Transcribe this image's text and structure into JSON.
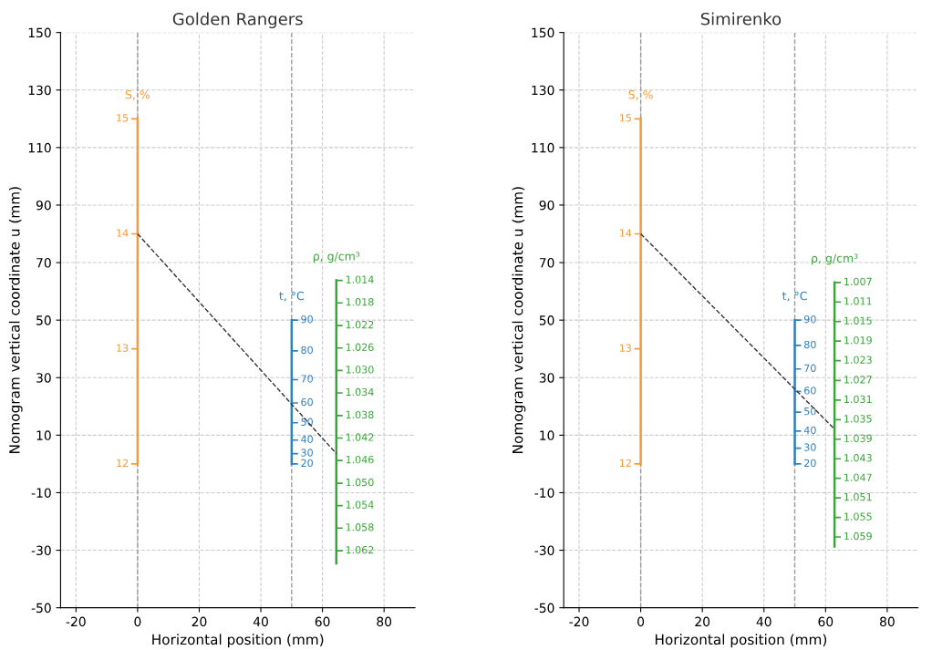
{
  "chart_data": [
    {
      "type": "line",
      "title": "Golden Rangers",
      "xlabel": "Horizontal position (mm)",
      "ylabel": "Nomogram vertical coordinate u (mm)",
      "xlim": [
        -25,
        90
      ],
      "xticks": [
        -20,
        0,
        20,
        40,
        60,
        80
      ],
      "ylim": [
        -50,
        150
      ],
      "yticks": [
        -50,
        -30,
        -10,
        10,
        30,
        50,
        70,
        90,
        110,
        130,
        150
      ],
      "grid": true,
      "marker": "none",
      "ref_lines": [
        {
          "axis": "x",
          "value": 0,
          "color": "#999999",
          "line_style": "dashed"
        },
        {
          "axis": "x",
          "value": 50,
          "color": "#999999",
          "line_style": "dashed"
        }
      ],
      "series": [
        {
          "name": "S, %",
          "color": "#f59a3a",
          "x": [
            0,
            0
          ],
          "values": [
            0,
            120
          ]
        },
        {
          "name": "t, °C",
          "color": "#2f7fc1",
          "x": [
            50,
            50
          ],
          "values": [
            0,
            50
          ]
        },
        {
          "name": "ρ, g/cm³",
          "color": "#3aa63a",
          "x": [
            64.5,
            64.5
          ],
          "values": [
            -34.6,
            63.8
          ]
        },
        {
          "color": "#333333",
          "x": [
            0,
            64.5
          ],
          "values": [
            80,
            3.6
          ],
          "line_style": "dashed"
        }
      ],
      "annotations": [
        {
          "text": "12",
          "x": 0,
          "y": 0
        },
        {
          "text": "13",
          "x": 0,
          "y": 40
        },
        {
          "text": "14",
          "x": 0,
          "y": 80
        },
        {
          "text": "15",
          "x": 0,
          "y": 120
        },
        {
          "text": "90",
          "x": 50,
          "y": 50
        },
        {
          "text": "80",
          "x": 50,
          "y": 39.3
        },
        {
          "text": "70",
          "x": 50,
          "y": 29.3
        },
        {
          "text": "60",
          "x": 50,
          "y": 21.2
        },
        {
          "text": "50",
          "x": 50,
          "y": 14.3
        },
        {
          "text": "40",
          "x": 50,
          "y": 8.3
        },
        {
          "text": "30",
          "x": 50,
          "y": 3.6
        },
        {
          "text": "20",
          "x": 50,
          "y": 0
        },
        {
          "text": "1.014",
          "x": 64.5,
          "y": 63.8
        },
        {
          "text": "1.018",
          "x": 64.5,
          "y": 56.0
        },
        {
          "text": "1.022",
          "x": 64.5,
          "y": 48.1
        },
        {
          "text": "1.026",
          "x": 64.5,
          "y": 40.3
        },
        {
          "text": "1.030",
          "x": 64.5,
          "y": 32.5
        },
        {
          "text": "1.034",
          "x": 64.5,
          "y": 24.7
        },
        {
          "text": "1.038",
          "x": 64.5,
          "y": 16.8
        },
        {
          "text": "1.042",
          "x": 64.5,
          "y": 9.0
        },
        {
          "text": "1.046",
          "x": 64.5,
          "y": 1.2
        },
        {
          "text": "1.050",
          "x": 64.5,
          "y": -6.7
        },
        {
          "text": "1.054",
          "x": 64.5,
          "y": -14.5
        },
        {
          "text": "1.058",
          "x": 64.5,
          "y": -22.3
        },
        {
          "text": "1.062",
          "x": 64.5,
          "y": -30.2
        }
      ]
    },
    {
      "type": "line",
      "title": "Simirenko",
      "xlabel": "Horizontal position (mm)",
      "ylabel": "Nomogram vertical coordinate u (mm)",
      "xlim": [
        -25,
        90
      ],
      "xticks": [
        -20,
        0,
        20,
        40,
        60,
        80
      ],
      "ylim": [
        -50,
        150
      ],
      "yticks": [
        -50,
        -30,
        -10,
        10,
        30,
        50,
        70,
        90,
        110,
        130,
        150
      ],
      "grid": true,
      "marker": "none",
      "ref_lines": [
        {
          "axis": "x",
          "value": 0,
          "color": "#999999",
          "line_style": "dashed"
        },
        {
          "axis": "x",
          "value": 50,
          "color": "#999999",
          "line_style": "dashed"
        }
      ],
      "series": [
        {
          "name": "S, %",
          "color": "#f59a3a",
          "x": [
            0,
            0
          ],
          "values": [
            0,
            120
          ]
        },
        {
          "name": "t, °C",
          "color": "#2f7fc1",
          "x": [
            50,
            50
          ],
          "values": [
            0,
            50
          ]
        },
        {
          "name": "ρ, g/cm³",
          "color": "#3aa63a",
          "x": [
            62.9,
            62.9
          ],
          "values": [
            -28.7,
            63.1
          ]
        },
        {
          "color": "#333333",
          "x": [
            0,
            62.9
          ],
          "values": [
            80,
            12.1
          ],
          "line_style": "dashed"
        }
      ],
      "annotations": [
        {
          "text": "12",
          "x": 0,
          "y": 0
        },
        {
          "text": "13",
          "x": 0,
          "y": 40
        },
        {
          "text": "14",
          "x": 0,
          "y": 80
        },
        {
          "text": "15",
          "x": 0,
          "y": 120
        },
        {
          "text": "90",
          "x": 50,
          "y": 50
        },
        {
          "text": "80",
          "x": 50,
          "y": 41.2
        },
        {
          "text": "70",
          "x": 50,
          "y": 33.0
        },
        {
          "text": "60",
          "x": 50,
          "y": 25.2
        },
        {
          "text": "50",
          "x": 50,
          "y": 18.0
        },
        {
          "text": "40",
          "x": 50,
          "y": 11.4
        },
        {
          "text": "30",
          "x": 50,
          "y": 5.5
        },
        {
          "text": "20",
          "x": 50,
          "y": 0
        },
        {
          "text": "1.007",
          "x": 62.9,
          "y": 63.1
        },
        {
          "text": "1.011",
          "x": 62.9,
          "y": 56.3
        },
        {
          "text": "1.015",
          "x": 62.9,
          "y": 49.5
        },
        {
          "text": "1.019",
          "x": 62.9,
          "y": 42.7
        },
        {
          "text": "1.023",
          "x": 62.9,
          "y": 35.9
        },
        {
          "text": "1.027",
          "x": 62.9,
          "y": 29.0
        },
        {
          "text": "1.031",
          "x": 62.9,
          "y": 22.2
        },
        {
          "text": "1.035",
          "x": 62.9,
          "y": 15.4
        },
        {
          "text": "1.039",
          "x": 62.9,
          "y": 8.6
        },
        {
          "text": "1.043",
          "x": 62.9,
          "y": 1.8
        },
        {
          "text": "1.047",
          "x": 62.9,
          "y": -5.0
        },
        {
          "text": "1.051",
          "x": 62.9,
          "y": -11.8
        },
        {
          "text": "1.055",
          "x": 62.9,
          "y": -18.6
        },
        {
          "text": "1.059",
          "x": 62.9,
          "y": -25.4
        }
      ]
    }
  ]
}
